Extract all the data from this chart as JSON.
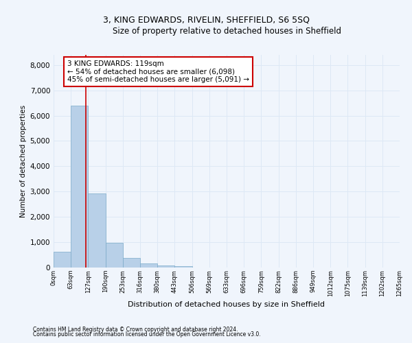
{
  "title": "3, KING EDWARDS, RIVELIN, SHEFFIELD, S6 5SQ",
  "subtitle": "Size of property relative to detached houses in Sheffield",
  "xlabel": "Distribution of detached houses by size in Sheffield",
  "ylabel": "Number of detached properties",
  "bin_labels": [
    "0sqm",
    "63sqm",
    "127sqm",
    "190sqm",
    "253sqm",
    "316sqm",
    "380sqm",
    "443sqm",
    "506sqm",
    "569sqm",
    "633sqm",
    "696sqm",
    "759sqm",
    "822sqm",
    "886sqm",
    "949sqm",
    "1012sqm",
    "1075sqm",
    "1139sqm",
    "1202sqm",
    "1265sqm"
  ],
  "bar_heights": [
    620,
    6400,
    2920,
    980,
    370,
    160,
    80,
    60,
    0,
    0,
    0,
    0,
    0,
    0,
    0,
    0,
    0,
    0,
    0,
    0
  ],
  "bar_color": "#b8d0e8",
  "bar_edge_color": "#7aaac8",
  "grid_color": "#dde8f5",
  "background_color": "#f0f5fc",
  "property_line_color": "#cc0000",
  "annotation_text": "3 KING EDWARDS: 119sqm\n← 54% of detached houses are smaller (6,098)\n45% of semi-detached houses are larger (5,091) →",
  "annotation_box_color": "#ffffff",
  "annotation_border_color": "#cc0000",
  "ylim": [
    0,
    8400
  ],
  "yticks": [
    0,
    1000,
    2000,
    3000,
    4000,
    5000,
    6000,
    7000,
    8000
  ],
  "footer_line1": "Contains HM Land Registry data © Crown copyright and database right 2024.",
  "footer_line2": "Contains public sector information licensed under the Open Government Licence v3.0."
}
